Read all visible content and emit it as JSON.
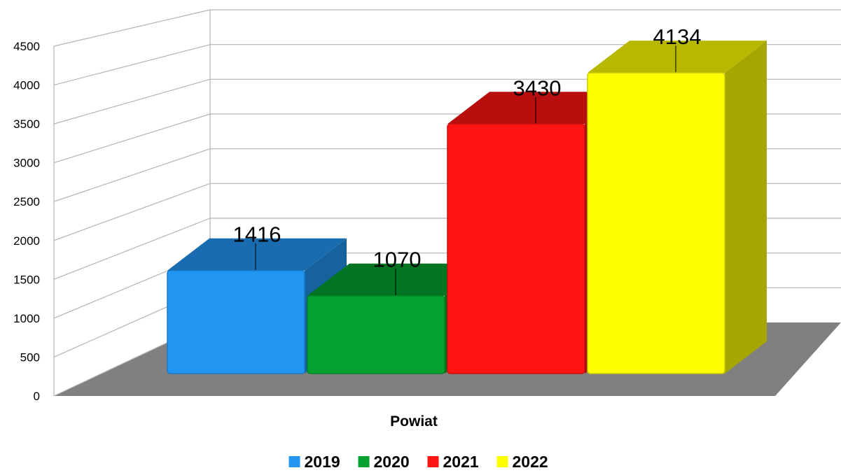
{
  "chart_data": {
    "type": "bar",
    "categories": [
      "Powiat"
    ],
    "series": [
      {
        "name": "2019",
        "values": [
          1416
        ],
        "color": "#2196f3"
      },
      {
        "name": "2020",
        "values": [
          1070
        ],
        "color": "#04a12f"
      },
      {
        "name": "2021",
        "values": [
          3430
        ],
        "color": "#ff1414"
      },
      {
        "name": "2022",
        "values": [
          4134
        ],
        "color": "#ffff00"
      }
    ],
    "xlabel": "Powiat",
    "ylabel": "",
    "ylim": [
      0,
      4500
    ],
    "yticks": [
      0,
      500,
      1000,
      1500,
      2000,
      2500,
      3000,
      3500,
      4000,
      4500
    ],
    "grid": true,
    "legend": "bottom",
    "projection": "3d",
    "floor_color": "#808080",
    "grid_color": "#b3b3b3"
  }
}
